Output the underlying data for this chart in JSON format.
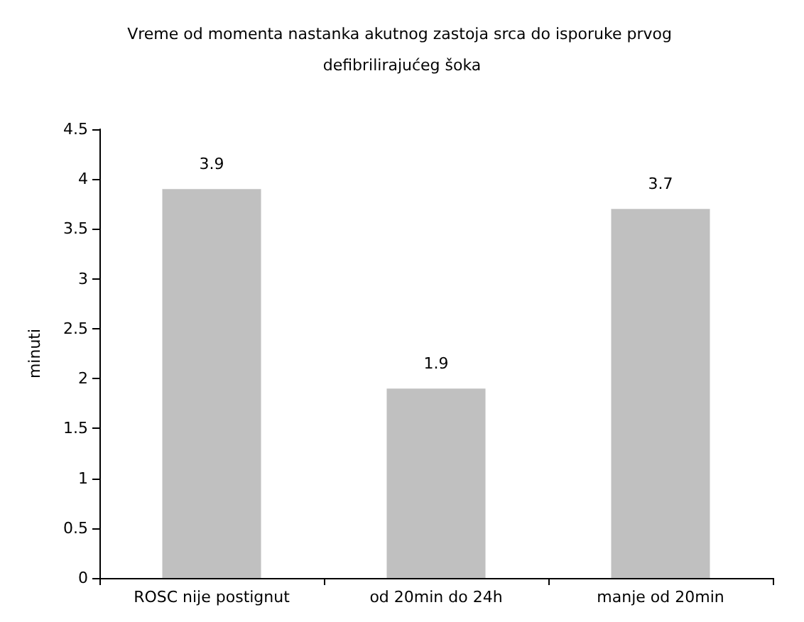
{
  "chart_data": {
    "type": "bar",
    "title": "Vreme od momenta nastanka akutnog zastoja srca do isporuke prvog defibrilirajućeg šoka",
    "ylabel": "minuti",
    "categories": [
      "ROSC nije postignut",
      "od 20min do 24h",
      "manje od 20min"
    ],
    "values": [
      3.9,
      1.9,
      3.7
    ],
    "color": "#c0c0c0",
    "ylim": [
      0,
      4.5
    ],
    "yticks": [
      0,
      0.5,
      1,
      1.5,
      2,
      2.5,
      3,
      3.5,
      4,
      4.5
    ],
    "grid": false,
    "data_labels": true
  }
}
